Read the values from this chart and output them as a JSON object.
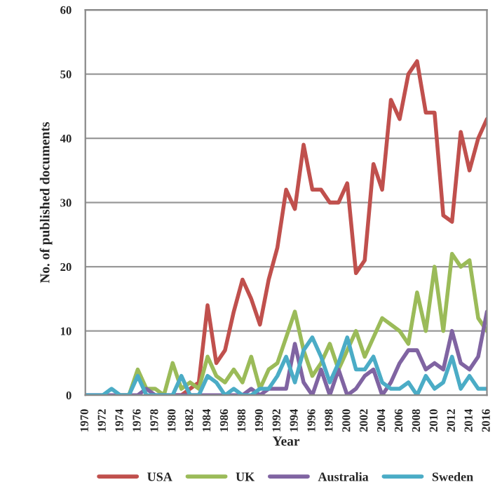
{
  "chart_data": {
    "type": "line",
    "xlabel": "Year",
    "ylabel": "No. of published documents",
    "x": [
      1970,
      1971,
      1972,
      1973,
      1974,
      1975,
      1976,
      1977,
      1978,
      1979,
      1980,
      1981,
      1982,
      1983,
      1984,
      1985,
      1986,
      1987,
      1988,
      1989,
      1990,
      1991,
      1992,
      1993,
      1994,
      1995,
      1996,
      1997,
      1998,
      1999,
      2000,
      2001,
      2002,
      2003,
      2004,
      2005,
      2006,
      2007,
      2008,
      2009,
      2010,
      2011,
      2012,
      2013,
      2014,
      2015,
      2016
    ],
    "series": [
      {
        "name": "USA",
        "color": "#c0504d",
        "values": [
          null,
          null,
          null,
          null,
          null,
          null,
          null,
          null,
          null,
          null,
          0,
          0,
          1,
          2,
          14,
          5,
          7,
          13,
          18,
          15,
          11,
          18,
          23,
          32,
          29,
          39,
          32,
          32,
          30,
          30,
          33,
          19,
          21,
          36,
          32,
          46,
          43,
          50,
          52,
          44,
          44,
          28,
          27,
          41,
          35,
          40,
          43
        ]
      },
      {
        "name": "UK",
        "color": "#9bbb59",
        "values": [
          null,
          null,
          null,
          null,
          0,
          0,
          4,
          1,
          1,
          0,
          5,
          1,
          2,
          1,
          6,
          3,
          2,
          4,
          2,
          6,
          1,
          4,
          5,
          9,
          13,
          7,
          3,
          5,
          8,
          4,
          7,
          10,
          6,
          9,
          12,
          11,
          10,
          8,
          16,
          10,
          20,
          10,
          22,
          20,
          21,
          12,
          10
        ]
      },
      {
        "name": "Australia",
        "color": "#8064a2",
        "values": [
          0,
          0,
          0,
          0,
          0,
          0,
          0,
          1,
          0,
          0,
          0,
          0,
          0,
          0,
          0,
          0,
          0,
          0,
          0,
          1,
          0,
          1,
          1,
          1,
          8,
          2,
          0,
          4,
          0,
          4,
          0,
          1,
          3,
          4,
          0,
          2,
          5,
          7,
          7,
          4,
          5,
          4,
          10,
          5,
          4,
          6,
          13
        ]
      },
      {
        "name": "Sweden",
        "color": "#4bacc6",
        "values": [
          0,
          0,
          0,
          1,
          0,
          0,
          3,
          0,
          0,
          0,
          0,
          3,
          0,
          0,
          3,
          2,
          0,
          1,
          0,
          0,
          1,
          1,
          3,
          6,
          2,
          7,
          9,
          6,
          2,
          5,
          9,
          4,
          4,
          6,
          2,
          1,
          1,
          2,
          0,
          3,
          1,
          2,
          6,
          1,
          3,
          1,
          1
        ]
      }
    ],
    "xlim": [
      1970,
      2016
    ],
    "xticks": [
      1970,
      1972,
      1974,
      1976,
      1978,
      1980,
      1982,
      1984,
      1986,
      1988,
      1990,
      1992,
      1994,
      1996,
      1998,
      2000,
      2002,
      2004,
      2006,
      2008,
      2010,
      2012,
      2014,
      2016
    ],
    "ylim": [
      0,
      60
    ],
    "yticks": [
      0,
      10,
      20,
      30,
      40,
      50,
      60
    ],
    "grid": "y",
    "legend": "bottom",
    "marker": "none",
    "line_style": "solid"
  }
}
